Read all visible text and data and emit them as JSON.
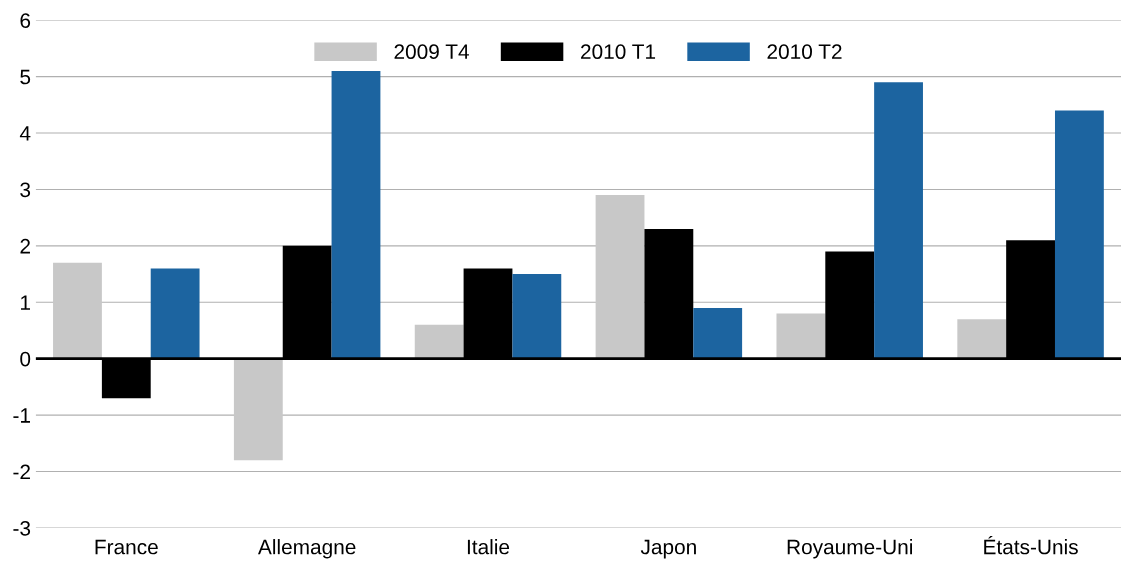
{
  "chart_data": {
    "type": "bar",
    "categories": [
      "France",
      "Allemagne",
      "Italie",
      "Japon",
      "Royaume-Uni",
      "États-Unis"
    ],
    "series": [
      {
        "name": "2009 T4",
        "color": "#c8c8c8",
        "values": [
          1.7,
          -1.8,
          0.6,
          2.9,
          0.8,
          0.7
        ]
      },
      {
        "name": "2010 T1",
        "color": "#000000",
        "values": [
          -0.7,
          2.0,
          1.6,
          2.3,
          1.9,
          2.1
        ]
      },
      {
        "name": "2010 T2",
        "color": "#1c64a0",
        "values": [
          1.6,
          5.1,
          1.5,
          0.9,
          4.9,
          4.4
        ]
      }
    ],
    "ylim": [
      -3,
      6
    ],
    "yticks": [
      -3,
      -2,
      -1,
      0,
      1,
      2,
      3,
      4,
      5,
      6
    ],
    "grid": "y",
    "legend": "top"
  }
}
